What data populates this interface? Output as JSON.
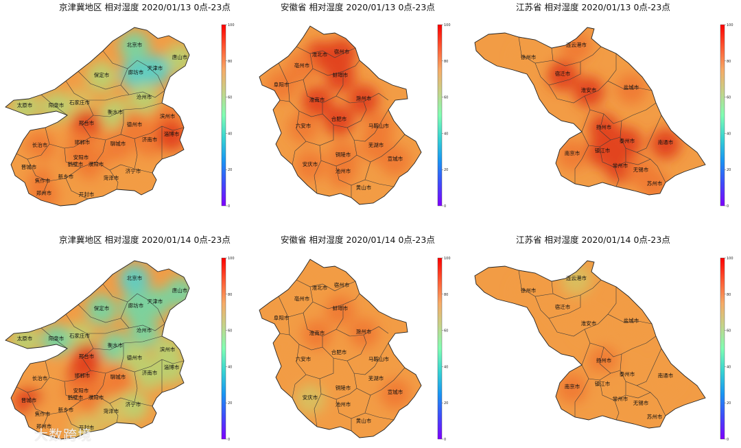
{
  "colors": {
    "high": "#e2401c",
    "midhigh": "#f07a34",
    "mid": "#f29c45",
    "midlow": "#d8c060",
    "lowmid": "#bcd070",
    "low": "#78d4a0",
    "lower": "#5ccfc4",
    "border": "#3a3a3a",
    "colorbar_stops": [
      "#7f00ff",
      "#3f4bfb",
      "#1996f3",
      "#37d4d2",
      "#80feb3",
      "#c4d48a",
      "#f7ab67",
      "#ff5a33",
      "#ff0000"
    ]
  },
  "colorbar_ticks": [
    "100",
    "80",
    "60",
    "40",
    "20",
    "0"
  ],
  "panels": [
    {
      "id": "jjj-0113",
      "title": "京津冀地区 相对湿度 2020/01/13 0点-23点",
      "region": "jjj",
      "cities": [
        "北京市",
        "唐山市",
        "天津市",
        "廊坊市",
        "保定市",
        "沧州市",
        "石家庄市",
        "太原市",
        "阳泉市",
        "衡水市",
        "邢台市",
        "德州市",
        "滨州市",
        "长治市",
        "邯郸市",
        "聊城市",
        "济南市",
        "淄博市",
        "晋城市",
        "安阳市",
        "鹤壁市",
        "濮阳市",
        "济宁市",
        "焦作市",
        "新乡市",
        "菏泽市",
        "郑州市",
        "开封市"
      ],
      "fill": [
        "low",
        "lowmid",
        "lower",
        "lower",
        "lowmid",
        "lowmid",
        "midlow",
        "lowmid",
        "lowmid",
        "lowmid",
        "high",
        "midhigh",
        "midhigh",
        "midhigh",
        "midhigh",
        "midhigh",
        "midhigh",
        "high",
        "mid",
        "midhigh",
        "midhigh",
        "midhigh",
        "mid",
        "midhigh",
        "mid",
        "mid",
        "midhigh",
        "mid"
      ]
    },
    {
      "id": "ah-0113",
      "title": "安徽省 相对湿度 2020/01/13 0点-23点",
      "region": "ah",
      "cities": [
        "淮北市",
        "宿州市",
        "亳州市",
        "蚌埠市",
        "阜阳市",
        "淮南市",
        "滁州市",
        "合肥市",
        "六安市",
        "马鞍山市",
        "芜湖市",
        "铜陵市",
        "安庆市",
        "宣城市",
        "池州市",
        "黄山市"
      ],
      "fill": [
        "high",
        "high",
        "midhigh",
        "high",
        "midhigh",
        "high",
        "high",
        "high",
        "midhigh",
        "midhigh",
        "midhigh",
        "midhigh",
        "midhigh",
        "midhigh",
        "midhigh",
        "mid"
      ]
    },
    {
      "id": "js-0113",
      "title": "江苏省 相对湿度 2020/01/13 0点-23点",
      "region": "js",
      "cities": [
        "连云港市",
        "徐州市",
        "宿迁市",
        "淮安市",
        "盐城市",
        "扬州市",
        "泰州市",
        "南通市",
        "镇江市",
        "南京市",
        "常州市",
        "无锡市",
        "苏州市"
      ],
      "fill": [
        "midhigh",
        "mid",
        "high",
        "high",
        "midhigh",
        "high",
        "high",
        "high",
        "high",
        "midhigh",
        "high",
        "midhigh",
        "midhigh"
      ]
    },
    {
      "id": "jjj-0114",
      "title": "京津冀地区 相对湿度 2020/01/14 0点-23点",
      "region": "jjj",
      "cities": [
        "北京市",
        "唐山市",
        "天津市",
        "廊坊市",
        "保定市",
        "沧州市",
        "石家庄市",
        "太原市",
        "阳泉市",
        "衡水市",
        "邢台市",
        "德州市",
        "滨州市",
        "长治市",
        "邯郸市",
        "聊城市",
        "济南市",
        "淄博市",
        "晋城市",
        "安阳市",
        "鹤壁市",
        "濮阳市",
        "济宁市",
        "焦作市",
        "新乡市",
        "菏泽市",
        "郑州市",
        "开封市"
      ],
      "fill": [
        "lower",
        "low",
        "low",
        "low",
        "low",
        "low",
        "lowmid",
        "lowmid",
        "low",
        "low",
        "high",
        "lowmid",
        "lowmid",
        "mid",
        "high",
        "midhigh",
        "lowmid",
        "lowmid",
        "high",
        "midhigh",
        "midhigh",
        "midhigh",
        "lowmid",
        "mid",
        "mid",
        "midlow",
        "mid",
        "midlow"
      ]
    },
    {
      "id": "ah-0114",
      "title": "安徽省 相对湿度 2020/01/14 0点-23点",
      "region": "ah",
      "cities": [
        "淮北市",
        "宿州市",
        "亳州市",
        "蚌埠市",
        "阜阳市",
        "淮南市",
        "滁州市",
        "合肥市",
        "六安市",
        "马鞍山市",
        "芜湖市",
        "铜陵市",
        "安庆市",
        "宣城市",
        "池州市",
        "黄山市"
      ],
      "fill": [
        "mid",
        "mid",
        "mid",
        "midhigh",
        "mid",
        "midhigh",
        "midhigh",
        "mid",
        "mid",
        "mid",
        "mid",
        "mid",
        "midlow",
        "midhigh",
        "mid",
        "mid"
      ]
    },
    {
      "id": "js-0114",
      "title": "江苏省 相对湿度 2020/01/14 0点-23点",
      "region": "js",
      "cities": [
        "连云港市",
        "徐州市",
        "宿迁市",
        "淮安市",
        "盐城市",
        "扬州市",
        "泰州市",
        "南通市",
        "镇江市",
        "南京市",
        "常州市",
        "无锡市",
        "苏州市"
      ],
      "fill": [
        "midlow",
        "mid",
        "mid",
        "mid",
        "mid",
        "midhigh",
        "mid",
        "mid",
        "mid",
        "midhigh",
        "mid",
        "mid",
        "mid"
      ]
    }
  ],
  "watermark": "大数跨境"
}
